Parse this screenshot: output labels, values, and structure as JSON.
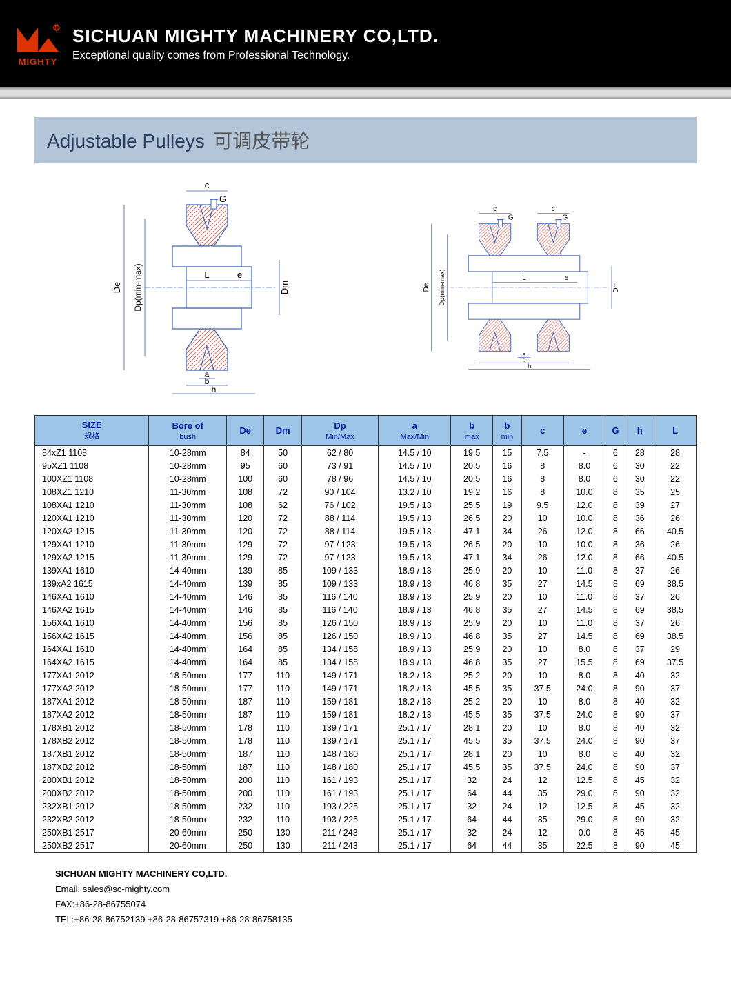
{
  "header": {
    "logo_label": "MIGHTY",
    "company": "SICHUAN MIGHTY MACHINERY CO,LTD.",
    "tagline": "Exceptional quality comes from Professional Technology.",
    "logo_color": "#dd3300"
  },
  "title": {
    "en": "Adjustable Pulleys",
    "cn": "可调皮带轮",
    "bg_color": "#b3c5d9"
  },
  "table": {
    "header_bg": "#9ec4e8",
    "header_color": "#0020a0",
    "columns": [
      {
        "label": "SIZE",
        "sub": "规格"
      },
      {
        "label": "Bore of",
        "sub": "bush"
      },
      {
        "label": "De"
      },
      {
        "label": "Dm"
      },
      {
        "label": "Dp",
        "sub": "Min/Max"
      },
      {
        "label": "a",
        "sub": "Max/Min"
      },
      {
        "label": "b",
        "sub": "max"
      },
      {
        "label": "b",
        "sub": "min"
      },
      {
        "label": "c"
      },
      {
        "label": "e"
      },
      {
        "label": "G"
      },
      {
        "label": "h"
      },
      {
        "label": "L"
      }
    ],
    "rows": [
      [
        "84xZ1  1108",
        "10-28mm",
        "84",
        "50",
        "62 / 80",
        "14.5 / 10",
        "19.5",
        "15",
        "7.5",
        "-",
        "6",
        "28",
        "28"
      ],
      [
        "95XZ1  1108",
        "10-28mm",
        "95",
        "60",
        "73 / 91",
        "14.5 / 10",
        "20.5",
        "16",
        "8",
        "8.0",
        "6",
        "30",
        "22"
      ],
      [
        "100XZ1  1108",
        "10-28mm",
        "100",
        "60",
        "78 / 96",
        "14.5 / 10",
        "20.5",
        "16",
        "8",
        "8.0",
        "6",
        "30",
        "22"
      ],
      [
        "108XZ1  1210",
        "11-30mm",
        "108",
        "72",
        "90 / 104",
        "13.2 / 10",
        "19.2",
        "16",
        "8",
        "10.0",
        "8",
        "35",
        "25"
      ],
      [
        "108XA1  1210",
        "11-30mm",
        "108",
        "62",
        "76 / 102",
        "19.5 / 13",
        "25.5",
        "19",
        "9.5",
        "12.0",
        "8",
        "39",
        "27"
      ],
      [
        "120XA1  1210",
        "11-30mm",
        "120",
        "72",
        "88 / 114",
        "19.5 / 13",
        "26.5",
        "20",
        "10",
        "10.0",
        "8",
        "36",
        "26"
      ],
      [
        "120XA2  1215",
        "11-30mm",
        "120",
        "72",
        "88 / 114",
        "19.5 / 13",
        "47.1",
        "34",
        "26",
        "12.0",
        "8",
        "66",
        "40.5"
      ],
      [
        "129XA1  1210",
        "11-30mm",
        "129",
        "72",
        "97 / 123",
        "19.5 / 13",
        "26.5",
        "20",
        "10",
        "10.0",
        "8",
        "36",
        "26"
      ],
      [
        "129XA2  1215",
        "11-30mm",
        "129",
        "72",
        "97 / 123",
        "19.5 / 13",
        "47.1",
        "34",
        "26",
        "12.0",
        "8",
        "66",
        "40.5"
      ],
      [
        "139XA1  1610",
        "14-40mm",
        "139",
        "85",
        "109 / 133",
        "18.9 / 13",
        "25.9",
        "20",
        "10",
        "11.0",
        "8",
        "37",
        "26"
      ],
      [
        "139xA2  1615",
        "14-40mm",
        "139",
        "85",
        "109 / 133",
        "18.9 / 13",
        "46.8",
        "35",
        "27",
        "14.5",
        "8",
        "69",
        "38.5"
      ],
      [
        "146XA1  1610",
        "14-40mm",
        "146",
        "85",
        "116 / 140",
        "18.9 / 13",
        "25.9",
        "20",
        "10",
        "11.0",
        "8",
        "37",
        "26"
      ],
      [
        "146XA2  1615",
        "14-40mm",
        "146",
        "85",
        "116 / 140",
        "18.9 / 13",
        "46.8",
        "35",
        "27",
        "14.5",
        "8",
        "69",
        "38.5"
      ],
      [
        "156XA1  1610",
        "14-40mm",
        "156",
        "85",
        "126 / 150",
        "18.9 / 13",
        "25.9",
        "20",
        "10",
        "11.0",
        "8",
        "37",
        "26"
      ],
      [
        "156XA2  1615",
        "14-40mm",
        "156",
        "85",
        "126 / 150",
        "18.9 / 13",
        "46.8",
        "35",
        "27",
        "14.5",
        "8",
        "69",
        "38.5"
      ],
      [
        "164XA1  1610",
        "14-40mm",
        "164",
        "85",
        "134 / 158",
        "18.9 / 13",
        "25.9",
        "20",
        "10",
        "8.0",
        "8",
        "37",
        "29"
      ],
      [
        "164XA2  1615",
        "14-40mm",
        "164",
        "85",
        "134 / 158",
        "18.9 / 13",
        "46.8",
        "35",
        "27",
        "15.5",
        "8",
        "69",
        "37.5"
      ],
      [
        "177XA1  2012",
        "18-50mm",
        "177",
        "110",
        "149 / 171",
        "18.2 / 13",
        "25.2",
        "20",
        "10",
        "8.0",
        "8",
        "40",
        "32"
      ],
      [
        "177XA2  2012",
        "18-50mm",
        "177",
        "110",
        "149 / 171",
        "18.2 / 13",
        "45.5",
        "35",
        "37.5",
        "24.0",
        "8",
        "90",
        "37"
      ],
      [
        "187XA1  2012",
        "18-50mm",
        "187",
        "110",
        "159 / 181",
        "18.2 / 13",
        "25.2",
        "20",
        "10",
        "8.0",
        "8",
        "40",
        "32"
      ],
      [
        "187XA2  2012",
        "18-50mm",
        "187",
        "110",
        "159 / 181",
        "18.2 / 13",
        "45.5",
        "35",
        "37.5",
        "24.0",
        "8",
        "90",
        "37"
      ],
      [
        "178XB1  2012",
        "18-50mm",
        "178",
        "110",
        "139 / 171",
        "25.1 / 17",
        "28.1",
        "20",
        "10",
        "8.0",
        "8",
        "40",
        "32"
      ],
      [
        "178XB2  2012",
        "18-50mm",
        "178",
        "110",
        "139 / 171",
        "25.1 / 17",
        "45.5",
        "35",
        "37.5",
        "24.0",
        "8",
        "90",
        "37"
      ],
      [
        "187XB1  2012",
        "18-50mm",
        "187",
        "110",
        "148 / 180",
        "25.1 / 17",
        "28.1",
        "20",
        "10",
        "8.0",
        "8",
        "40",
        "32"
      ],
      [
        "187XB2  2012",
        "18-50mm",
        "187",
        "110",
        "148 / 180",
        "25.1 / 17",
        "45.5",
        "35",
        "37.5",
        "24.0",
        "8",
        "90",
        "37"
      ],
      [
        "200XB1  2012",
        "18-50mm",
        "200",
        "110",
        "161 / 193",
        "25.1 / 17",
        "32",
        "24",
        "12",
        "12.5",
        "8",
        "45",
        "32"
      ],
      [
        "200XB2  2012",
        "18-50mm",
        "200",
        "110",
        "161 / 193",
        "25.1 / 17",
        "64",
        "44",
        "35",
        "29.0",
        "8",
        "90",
        "32"
      ],
      [
        "232XB1  2012",
        "18-50mm",
        "232",
        "110",
        "193 / 225",
        "25.1 / 17",
        "32",
        "24",
        "12",
        "12.5",
        "8",
        "45",
        "32"
      ],
      [
        "232XB2  2012",
        "18-50mm",
        "232",
        "110",
        "193 / 225",
        "25.1 / 17",
        "64",
        "44",
        "35",
        "29.0",
        "8",
        "90",
        "32"
      ],
      [
        "250XB1  2517",
        "20-60mm",
        "250",
        "130",
        "211 / 243",
        "25.1 / 17",
        "32",
        "24",
        "12",
        "0.0",
        "8",
        "45",
        "45"
      ],
      [
        "250XB2  2517",
        "20-60mm",
        "250",
        "130",
        "211 / 243",
        "25.1 / 17",
        "64",
        "44",
        "35",
        "22.5",
        "8",
        "90",
        "45"
      ]
    ]
  },
  "footer": {
    "company": "SICHUAN MIGHTY MACHINERY CO,LTD.",
    "email_label": "Email:",
    "email": "sales@sc-mighty.com",
    "fax": "FAX:+86-28-86755074",
    "tel": "TEL:+86-28-86752139 +86-28-86757319 +86-28-86758135"
  },
  "diagram": {
    "stroke": "#3a5fb0",
    "hatch": "#d4756a",
    "labels": [
      "c",
      "G",
      "De",
      "Dp(min-max)",
      "Dm",
      "L",
      "e",
      "a",
      "b",
      "h"
    ]
  }
}
